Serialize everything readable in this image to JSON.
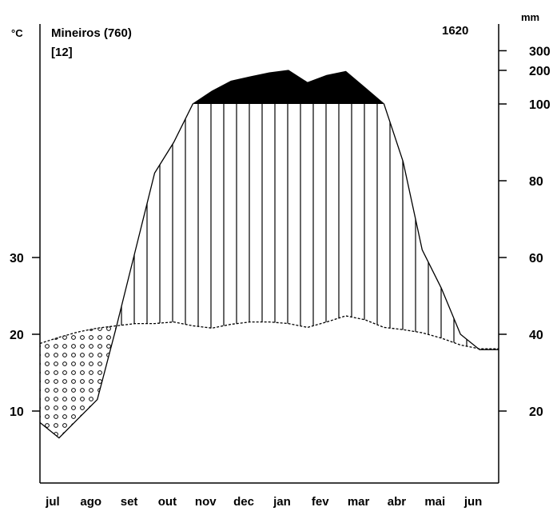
{
  "chart_data": {
    "type": "climate-diagram",
    "station": "Mineiros (760)",
    "station_extra": "[12]",
    "annual_precipitation": "1620",
    "temp_unit": "°C",
    "precip_unit": "mm",
    "categories": [
      "jul",
      "ago",
      "set",
      "out",
      "nov",
      "dec",
      "jan",
      "fev",
      "mar",
      "abr",
      "mai",
      "jun"
    ],
    "series": [
      {
        "kind": "temperature",
        "x": [
          0.0,
          0.5,
          1.0,
          1.5,
          2.0,
          2.5,
          3.0,
          3.5,
          4.0,
          4.5,
          5.0,
          5.5,
          6.0,
          6.5,
          7.0,
          7.5,
          8.0,
          8.5,
          9.0,
          9.5,
          10.0,
          10.5,
          11.0,
          11.5
        ],
        "values": [
          18.8,
          19.6,
          20.3,
          20.8,
          21.1,
          21.4,
          21.4,
          21.6,
          21.1,
          20.8,
          21.3,
          21.6,
          21.6,
          21.4,
          20.9,
          21.6,
          22.4,
          21.9,
          20.9,
          20.6,
          20.2,
          19.5,
          18.6,
          18.1
        ]
      },
      {
        "kind": "precipitation",
        "x": [
          0.0,
          0.5,
          1.0,
          1.5,
          2.0,
          2.5,
          3.0,
          3.5,
          4.0,
          4.5,
          5.0,
          5.5,
          6.0,
          6.5,
          7.0,
          7.5,
          8.0,
          8.5,
          9.0,
          9.5,
          10.0,
          10.5,
          11.0,
          11.5
        ],
        "values": [
          17,
          13,
          18,
          23,
          42,
          62,
          82,
          90,
          100,
          130,
          160,
          175,
          190,
          200,
          155,
          180,
          195,
          140,
          100,
          85,
          62,
          52,
          40,
          36
        ]
      }
    ],
    "temp_ticks": [
      10,
      20,
      30
    ],
    "precip_ticks": [
      20,
      40,
      60,
      80,
      100,
      200,
      300
    ]
  }
}
